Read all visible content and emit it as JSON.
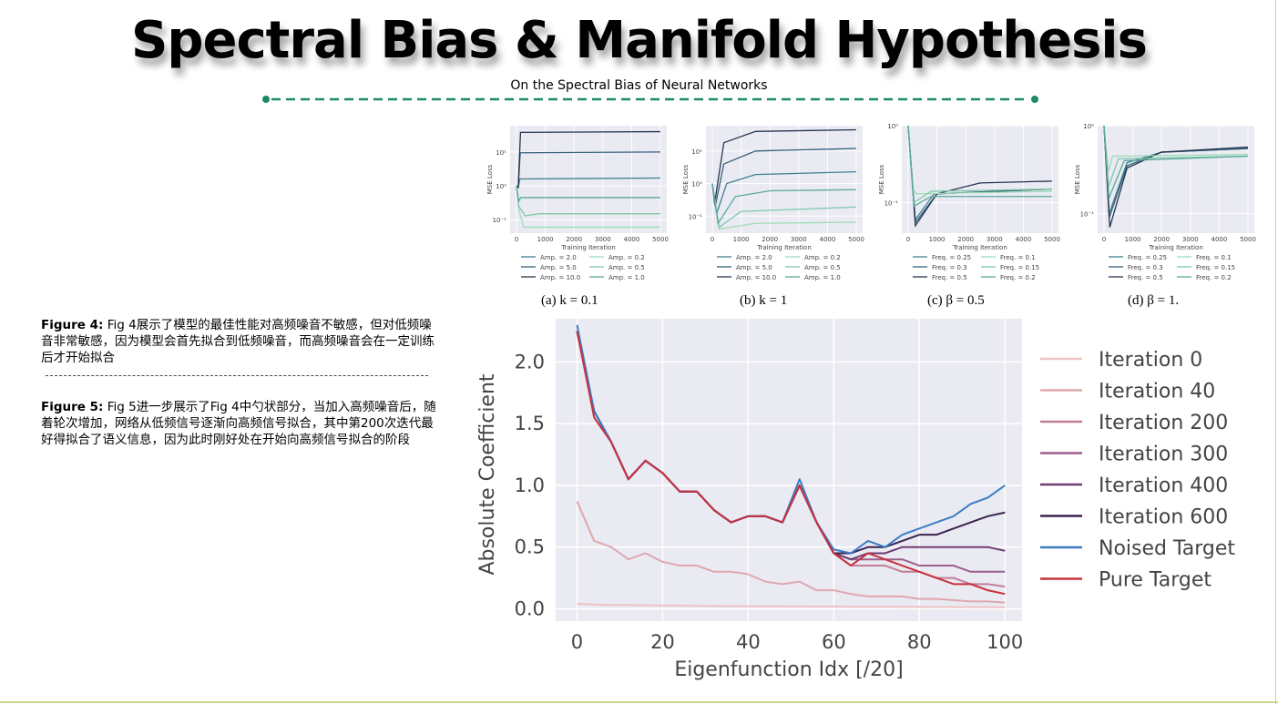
{
  "title": "Spectral Bias & Manifold Hypothesis",
  "subtitle": "On the Spectral Bias of Neural Networks",
  "accent": "#1a8a6a",
  "captions": [
    {
      "label": "Figure 4:",
      "text": "Fig 4展示了模型的最佳性能对高频噪音不敏感，但对低频噪音非常敏感，因为模型会首先拟合到低频噪音，而高频噪音会在一定训练后才开始拟合"
    },
    {
      "label": "Figure 5:",
      "text": "Fig 5进一步展示了Fig 4中勺状部分，当加入高频噪音后，随着轮次增加，网络从低频信号逐渐向高频信号拟合，其中第200次迭代最好得拟合了语义信息，因为此时刚好处在开始向高频信号拟合的阶段"
    }
  ],
  "chart_data": [
    {
      "type": "line",
      "subcaption": "(a) k = 0.1",
      "xlabel": "Training Iteration",
      "ylabel": "MSE Loss",
      "yscale": "log",
      "xlim": [
        0,
        5000
      ],
      "xticks": [
        "0",
        "1000",
        "2000",
        "3000",
        "4000",
        "5000"
      ],
      "yticks": [
        {
          "v": 10,
          "label": "10¹"
        },
        {
          "v": 1,
          "label": "10⁰"
        },
        {
          "v": 0.1,
          "label": "10⁻¹"
        }
      ],
      "ylim": [
        0.04,
        60
      ],
      "grid": true,
      "legend": "bottom",
      "series": [
        {
          "name": "Amp. = 2.0",
          "color": "#3f7f8f",
          "points": [
            [
              0,
              1
            ],
            [
              60,
              0.9
            ],
            [
              120,
              1.6
            ],
            [
              5000,
              1.7
            ]
          ]
        },
        {
          "name": "Amp. = 5.0",
          "color": "#34607a",
          "points": [
            [
              0,
              1
            ],
            [
              60,
              0.9
            ],
            [
              130,
              9.5
            ],
            [
              5000,
              10
            ]
          ]
        },
        {
          "name": "Amp. = 10.0",
          "color": "#25354f",
          "points": [
            [
              0,
              1
            ],
            [
              60,
              0.9
            ],
            [
              140,
              38
            ],
            [
              5000,
              40
            ]
          ]
        },
        {
          "name": "Amp. = 0.2",
          "color": "#9ddcb9",
          "points": [
            [
              0,
              1
            ],
            [
              80,
              0.2
            ],
            [
              250,
              0.06
            ],
            [
              5000,
              0.06
            ]
          ]
        },
        {
          "name": "Amp. = 0.5",
          "color": "#7ec9a9",
          "points": [
            [
              0,
              1
            ],
            [
              80,
              0.25
            ],
            [
              300,
              0.13
            ],
            [
              800,
              0.15
            ],
            [
              5000,
              0.15
            ]
          ]
        },
        {
          "name": "Amp. = 1.0",
          "color": "#58a89b",
          "points": [
            [
              0,
              1
            ],
            [
              80,
              0.35
            ],
            [
              150,
              0.45
            ],
            [
              5000,
              0.45
            ]
          ]
        }
      ]
    },
    {
      "type": "line",
      "subcaption": "(b) k = 1",
      "xlabel": "Training Iteration",
      "ylabel": "MSE Loss",
      "yscale": "log",
      "xlim": [
        0,
        5000
      ],
      "xticks": [
        "0",
        "1000",
        "2000",
        "3000",
        "4000",
        "5000"
      ],
      "yticks": [
        {
          "v": 10,
          "label": "10¹"
        },
        {
          "v": 1,
          "label": "10⁰"
        },
        {
          "v": 0.1,
          "label": "10⁻¹"
        }
      ],
      "ylim": [
        0.03,
        60
      ],
      "grid": true,
      "legend": "bottom",
      "series": [
        {
          "name": "Amp. = 2.0",
          "color": "#3f7f8f",
          "points": [
            [
              0,
              1
            ],
            [
              150,
              0.12
            ],
            [
              500,
              1
            ],
            [
              1500,
              1.9
            ],
            [
              5000,
              2.3
            ]
          ]
        },
        {
          "name": "Amp. = 5.0",
          "color": "#34607a",
          "points": [
            [
              0,
              1
            ],
            [
              100,
              0.2
            ],
            [
              400,
              4
            ],
            [
              1500,
              10
            ],
            [
              5000,
              12
            ]
          ]
        },
        {
          "name": "Amp. = 10.0",
          "color": "#25354f",
          "points": [
            [
              0,
              1
            ],
            [
              80,
              0.25
            ],
            [
              400,
              18
            ],
            [
              1500,
              40
            ],
            [
              5000,
              45
            ]
          ]
        },
        {
          "name": "Amp. = 0.2",
          "color": "#9ddcb9",
          "points": [
            [
              0,
              1
            ],
            [
              250,
              0.04
            ],
            [
              1500,
              0.06
            ],
            [
              5000,
              0.065
            ]
          ]
        },
        {
          "name": "Amp. = 0.5",
          "color": "#7ec9a9",
          "points": [
            [
              0,
              1
            ],
            [
              230,
              0.045
            ],
            [
              1000,
              0.14
            ],
            [
              5000,
              0.19
            ]
          ]
        },
        {
          "name": "Amp. = 1.0",
          "color": "#58a89b",
          "points": [
            [
              0,
              1
            ],
            [
              200,
              0.06
            ],
            [
              800,
              0.4
            ],
            [
              2000,
              0.6
            ],
            [
              5000,
              0.65
            ]
          ]
        }
      ]
    },
    {
      "type": "line",
      "subcaption": "(c) β = 0.5",
      "xlabel": "Training Iteration",
      "ylabel": "MSE Loss",
      "yscale": "log",
      "xlim": [
        0,
        5000
      ],
      "xticks": [
        "0",
        "1000",
        "2000",
        "3000",
        "4000",
        "5000"
      ],
      "yticks": [
        {
          "v": 1,
          "label": "10⁰"
        },
        {
          "v": 0.1,
          "label": "10⁻¹"
        }
      ],
      "ylim": [
        0.04,
        1
      ],
      "grid": true,
      "legend": "bottom",
      "series": [
        {
          "name": "Freq. = 0.25",
          "color": "#3f7f8f",
          "points": [
            [
              0,
              1
            ],
            [
              250,
              0.06
            ],
            [
              900,
              0.13
            ],
            [
              5000,
              0.15
            ]
          ]
        },
        {
          "name": "Freq. = 0.3",
          "color": "#34607a",
          "points": [
            [
              0,
              1
            ],
            [
              250,
              0.055
            ],
            [
              1000,
              0.13
            ],
            [
              5000,
              0.15
            ]
          ]
        },
        {
          "name": "Freq. = 0.5",
          "color": "#25354f",
          "points": [
            [
              0,
              1
            ],
            [
              250,
              0.05
            ],
            [
              1000,
              0.13
            ],
            [
              2500,
              0.18
            ],
            [
              5000,
              0.19
            ]
          ]
        },
        {
          "name": "Freq. = 0.1",
          "color": "#9ddcb9",
          "points": [
            [
              0,
              1
            ],
            [
              150,
              0.15
            ],
            [
              300,
              0.13
            ],
            [
              5000,
              0.14
            ]
          ]
        },
        {
          "name": "Freq. = 0.15",
          "color": "#7ec9a9",
          "points": [
            [
              0,
              1
            ],
            [
              200,
              0.1
            ],
            [
              800,
              0.14
            ],
            [
              5000,
              0.15
            ]
          ]
        },
        {
          "name": "Freq. = 0.2",
          "color": "#58a89b",
          "points": [
            [
              0,
              1
            ],
            [
              200,
              0.09
            ],
            [
              800,
              0.12
            ],
            [
              5000,
              0.12
            ]
          ]
        }
      ]
    },
    {
      "type": "line",
      "subcaption": "(d) β = 1.",
      "xlabel": "Training Iteration",
      "ylabel": "MSE Loss",
      "yscale": "log",
      "xlim": [
        0,
        5000
      ],
      "xticks": [
        "0",
        "1000",
        "2000",
        "3000",
        "4000",
        "5000"
      ],
      "yticks": [
        {
          "v": 1,
          "label": "10⁰"
        },
        {
          "v": 0.1,
          "label": "10⁻¹"
        }
      ],
      "ylim": [
        0.06,
        1
      ],
      "grid": true,
      "legend": "bottom",
      "series": [
        {
          "name": "Freq. = 0.25",
          "color": "#3f7f8f",
          "points": [
            [
              0,
              1
            ],
            [
              180,
              0.1
            ],
            [
              800,
              0.38
            ],
            [
              2000,
              0.5
            ],
            [
              5000,
              0.55
            ]
          ]
        },
        {
          "name": "Freq. = 0.3",
          "color": "#34607a",
          "points": [
            [
              0,
              1
            ],
            [
              180,
              0.09
            ],
            [
              800,
              0.35
            ],
            [
              2000,
              0.5
            ],
            [
              5000,
              0.55
            ]
          ]
        },
        {
          "name": "Freq. = 0.5",
          "color": "#25354f",
          "points": [
            [
              0,
              1
            ],
            [
              200,
              0.07
            ],
            [
              800,
              0.33
            ],
            [
              2000,
              0.5
            ],
            [
              5000,
              0.57
            ]
          ]
        },
        {
          "name": "Freq. = 0.1",
          "color": "#9ddcb9",
          "points": [
            [
              0,
              1
            ],
            [
              150,
              0.3
            ],
            [
              300,
              0.45
            ],
            [
              5000,
              0.47
            ]
          ]
        },
        {
          "name": "Freq. = 0.15",
          "color": "#7ec9a9",
          "points": [
            [
              0,
              1
            ],
            [
              150,
              0.2
            ],
            [
              500,
              0.42
            ],
            [
              5000,
              0.45
            ]
          ]
        },
        {
          "name": "Freq. = 0.2",
          "color": "#58a89b",
          "points": [
            [
              0,
              1
            ],
            [
              170,
              0.15
            ],
            [
              700,
              0.4
            ],
            [
              5000,
              0.45
            ]
          ]
        }
      ]
    },
    {
      "type": "line",
      "xlabel": "Eigenfunction Idx [/20]",
      "ylabel": "Absolute Coefficient",
      "xlim": [
        -5,
        104
      ],
      "ylim": [
        -0.1,
        2.35
      ],
      "xticks": [
        0,
        20,
        40,
        60,
        80,
        100
      ],
      "yticks": [
        0.0,
        0.5,
        1.0,
        1.5,
        2.0
      ],
      "grid": true,
      "legend": "right",
      "x": [
        0,
        4,
        8,
        12,
        16,
        20,
        24,
        28,
        32,
        36,
        40,
        44,
        48,
        52,
        56,
        60,
        64,
        68,
        72,
        76,
        80,
        84,
        88,
        92,
        96,
        100
      ],
      "series": [
        {
          "name": "Iteration 0",
          "color": "#efc3c5",
          "values": [
            0.04,
            0.035,
            0.03,
            0.03,
            0.028,
            0.027,
            0.025,
            0.024,
            0.023,
            0.022,
            0.021,
            0.02,
            0.02,
            0.019,
            0.018,
            0.018,
            0.017,
            0.016,
            0.016,
            0.015,
            0.015,
            0.014,
            0.014,
            0.013,
            0.013,
            0.012
          ]
        },
        {
          "name": "Iteration 40",
          "color": "#e0a7b0",
          "values": [
            0.87,
            0.55,
            0.5,
            0.4,
            0.45,
            0.38,
            0.35,
            0.35,
            0.3,
            0.3,
            0.28,
            0.22,
            0.2,
            0.22,
            0.15,
            0.15,
            0.12,
            0.1,
            0.1,
            0.1,
            0.08,
            0.08,
            0.07,
            0.06,
            0.06,
            0.05
          ]
        },
        {
          "name": "Iteration 200",
          "color": "#c27e98",
          "values": [
            2.25,
            1.6,
            1.35,
            1.05,
            1.2,
            1.1,
            0.95,
            0.95,
            0.8,
            0.7,
            0.75,
            0.75,
            0.7,
            1.0,
            0.7,
            0.45,
            0.35,
            0.35,
            0.35,
            0.3,
            0.3,
            0.25,
            0.25,
            0.2,
            0.2,
            0.18
          ]
        },
        {
          "name": "Iteration 300",
          "color": "#9e5f8c",
          "values": [
            2.25,
            1.6,
            1.35,
            1.05,
            1.2,
            1.1,
            0.95,
            0.95,
            0.8,
            0.7,
            0.75,
            0.75,
            0.7,
            1.0,
            0.7,
            0.45,
            0.4,
            0.4,
            0.4,
            0.4,
            0.35,
            0.35,
            0.35,
            0.3,
            0.3,
            0.3
          ]
        },
        {
          "name": "Iteration 400",
          "color": "#6e3d72",
          "values": [
            2.25,
            1.6,
            1.35,
            1.05,
            1.2,
            1.1,
            0.95,
            0.95,
            0.8,
            0.7,
            0.75,
            0.75,
            0.7,
            1.0,
            0.7,
            0.45,
            0.4,
            0.45,
            0.45,
            0.5,
            0.5,
            0.5,
            0.5,
            0.5,
            0.5,
            0.47
          ]
        },
        {
          "name": "Iteration 600",
          "color": "#3a2450",
          "values": [
            2.25,
            1.6,
            1.35,
            1.05,
            1.2,
            1.1,
            0.95,
            0.95,
            0.8,
            0.7,
            0.75,
            0.75,
            0.7,
            1.0,
            0.7,
            0.45,
            0.45,
            0.5,
            0.5,
            0.55,
            0.6,
            0.6,
            0.65,
            0.7,
            0.75,
            0.78
          ]
        },
        {
          "name": "Noised Target",
          "color": "#3b7dc4",
          "values": [
            2.3,
            1.6,
            1.35,
            1.05,
            1.2,
            1.1,
            0.95,
            0.95,
            0.8,
            0.7,
            0.75,
            0.75,
            0.7,
            1.05,
            0.7,
            0.48,
            0.45,
            0.55,
            0.5,
            0.6,
            0.65,
            0.7,
            0.75,
            0.85,
            0.9,
            1.0
          ]
        },
        {
          "name": "Pure Target",
          "color": "#c8303e",
          "values": [
            2.25,
            1.55,
            1.35,
            1.05,
            1.2,
            1.1,
            0.95,
            0.95,
            0.8,
            0.7,
            0.75,
            0.75,
            0.7,
            1.0,
            0.7,
            0.45,
            0.35,
            0.45,
            0.4,
            0.35,
            0.3,
            0.25,
            0.2,
            0.2,
            0.15,
            0.12
          ]
        }
      ]
    }
  ]
}
